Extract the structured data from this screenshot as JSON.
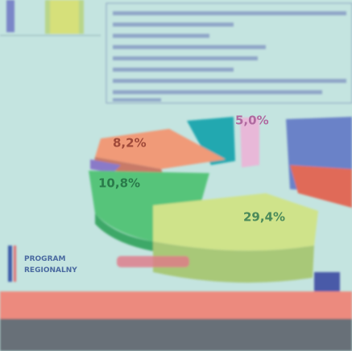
{
  "slide": {
    "pie_labels": [
      "8,2%",
      "10,8%",
      "29,4%",
      "5,0%"
    ],
    "logo": [
      "PROGRAM",
      "REGIONALNY"
    ]
  }
}
